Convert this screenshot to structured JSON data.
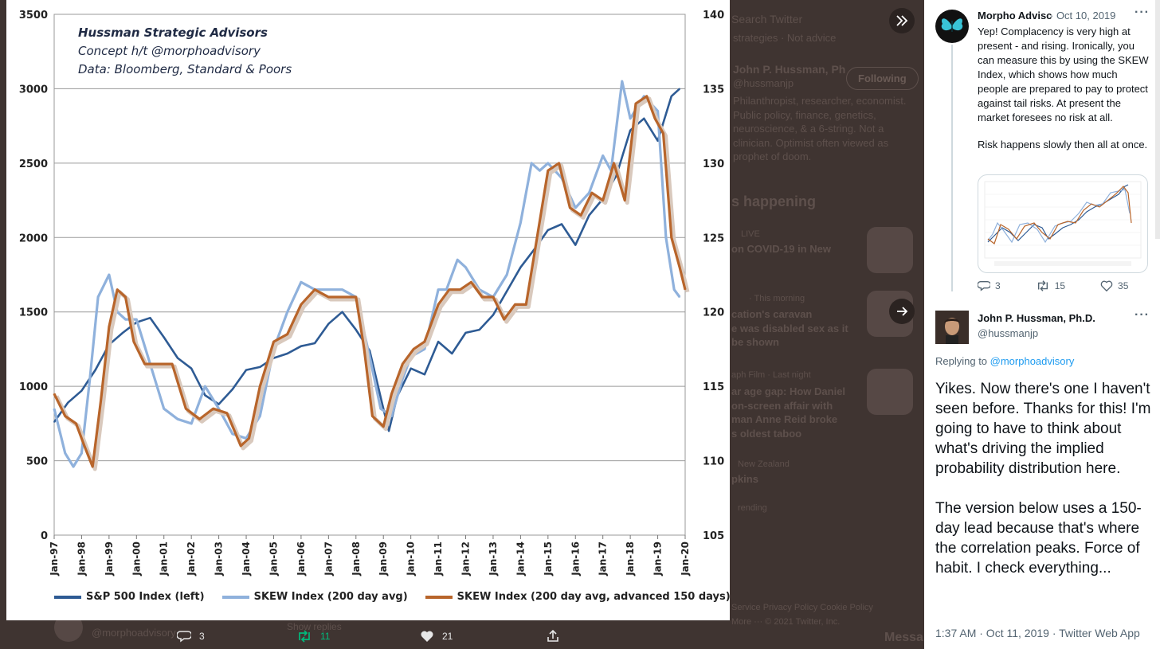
{
  "background": {
    "search_placeholder": "Search Twitter",
    "bio_cut": "strategies · Not advice",
    "profile_name": "John P. Hussman, Ph",
    "profile_handle": "@hussmanjp",
    "following_label": "Following",
    "bio_lines": [
      "Philanthropist, researcher, economist.",
      "Public policy, finance, genetics,",
      "neuroscience, & a 6-string. Not a",
      "clinician. Optimist often viewed as",
      "prophet of doom."
    ],
    "happening_header": "s happening",
    "trend1_meta": "LIVE",
    "trend1_title": "on COVID-19 in New",
    "trend2_meta": "· This morning",
    "trend2_lines": [
      "cation's caravan",
      "e was disabled sex as it",
      "be shown"
    ],
    "trend3_meta": "aph Film · Last night",
    "trend3_lines": [
      "ar age gap: How Daniel",
      "on-screen affair with",
      "man Anne Reid broke",
      "s oldest taboo"
    ],
    "trend4_meta": "New Zealand",
    "trend4_title": "pkins",
    "trend5_meta": "rending",
    "footer_links": "Service  Privacy Policy  Cookie Policy",
    "footer_more": "More ···  © 2021 Twitter, Inc.",
    "under_handle": "@morphoadvisory",
    "show_replies": "Show replies",
    "messages_cut": "Messa",
    "under_counts": {
      "replies": "3",
      "retweets": "11",
      "likes": "21"
    }
  },
  "chart_annotation": {
    "line1": "Hussman Strategic Advisors",
    "line2": "Concept h/t @morphoadvisory",
    "line3": "Data: Bloomberg, Standard & Poors"
  },
  "chart_data": {
    "type": "line",
    "x_ticks": [
      "Jan-97",
      "Jan-98",
      "Jan-99",
      "Jan-00",
      "Jan-01",
      "Jan-02",
      "Jan-03",
      "Jan-04",
      "Jan-05",
      "Jan-06",
      "Jan-07",
      "Jan-08",
      "Jan-09",
      "Jan-10",
      "Jan-11",
      "Jan-12",
      "Jan-13",
      "Jan-14",
      "Jan-15",
      "Jan-16",
      "Jan-17",
      "Jan-18",
      "Jan-19",
      "Jan-20"
    ],
    "y_left_ticks": [
      0,
      500,
      1000,
      1500,
      2000,
      2500,
      3000,
      3500
    ],
    "y_right_ticks": [
      105,
      110,
      115,
      120,
      125,
      130,
      135,
      140
    ],
    "ylim_left": [
      0,
      3500
    ],
    "ylim_right": [
      105,
      140
    ],
    "grid": true,
    "legend_position": "bottom",
    "series": [
      {
        "name": "S&P 500 Index (left)",
        "axis": "left",
        "color": "#2e5b94",
        "x": [
          1997.0,
          1997.5,
          1998.0,
          1998.5,
          1999.0,
          1999.5,
          2000.0,
          2000.5,
          2001.0,
          2001.5,
          2002.0,
          2002.5,
          2003.0,
          2003.5,
          2004.0,
          2004.5,
          2005.0,
          2005.5,
          2006.0,
          2006.5,
          2007.0,
          2007.5,
          2008.0,
          2008.5,
          2009.0,
          2009.2,
          2009.5,
          2010.0,
          2010.5,
          2011.0,
          2011.5,
          2012.0,
          2012.5,
          2013.0,
          2013.5,
          2014.0,
          2014.5,
          2015.0,
          2015.5,
          2016.0,
          2016.5,
          2017.0,
          2017.5,
          2018.0,
          2018.5,
          2019.0,
          2019.5,
          2019.8
        ],
        "y": [
          760,
          890,
          970,
          1110,
          1280,
          1360,
          1430,
          1460,
          1330,
          1190,
          1120,
          940,
          880,
          980,
          1110,
          1130,
          1190,
          1220,
          1270,
          1290,
          1420,
          1500,
          1380,
          1240,
          850,
          700,
          930,
          1120,
          1080,
          1300,
          1220,
          1360,
          1380,
          1480,
          1640,
          1800,
          1920,
          2050,
          2090,
          1950,
          2150,
          2260,
          2420,
          2720,
          2800,
          2650,
          2950,
          3000
        ]
      },
      {
        "name": "SKEW Index (200 day avg)",
        "axis": "right",
        "color": "#8fb1dc",
        "x": [
          1997.0,
          1997.4,
          1997.7,
          1998.0,
          1998.3,
          1998.6,
          1999.0,
          1999.3,
          1999.6,
          2000.0,
          2000.5,
          2001.0,
          2001.5,
          2002.0,
          2002.5,
          2003.0,
          2003.5,
          2004.0,
          2004.5,
          2005.0,
          2005.5,
          2006.0,
          2006.5,
          2007.0,
          2007.5,
          2008.0,
          2008.5,
          2008.9,
          2009.3,
          2009.7,
          2010.0,
          2010.5,
          2011.0,
          2011.3,
          2011.7,
          2012.0,
          2012.5,
          2013.0,
          2013.5,
          2014.0,
          2014.4,
          2014.7,
          2015.0,
          2015.5,
          2016.0,
          2016.5,
          2017.0,
          2017.3,
          2017.7,
          2018.0,
          2018.5,
          2019.0,
          2019.3,
          2019.6,
          2019.8
        ],
        "y": [
          113.5,
          110.5,
          109.6,
          110.5,
          115.5,
          121.0,
          122.5,
          120.0,
          119.5,
          119.5,
          116.5,
          113.5,
          112.8,
          112.5,
          115.0,
          113.5,
          111.8,
          111.5,
          113.0,
          117.5,
          120.0,
          122.0,
          121.5,
          121.5,
          121.5,
          121.0,
          117.0,
          113.5,
          113.0,
          115.5,
          117.0,
          117.5,
          121.5,
          121.5,
          123.5,
          123.0,
          121.5,
          121.0,
          122.5,
          126.0,
          130.0,
          129.5,
          130.0,
          129.0,
          127.0,
          128.0,
          130.5,
          129.5,
          135.5,
          133.0,
          134.5,
          133.5,
          125.0,
          121.5,
          121.0
        ]
      },
      {
        "name": "SKEW Index (200 day avg, advanced 150 days)",
        "axis": "right",
        "color": "#b8652b",
        "x": [
          1997.0,
          1997.4,
          1997.8,
          1998.1,
          1998.4,
          1998.7,
          1999.0,
          1999.3,
          1999.6,
          1999.9,
          2000.3,
          2000.8,
          2001.3,
          2001.8,
          2002.3,
          2002.8,
          2003.3,
          2003.8,
          2004.1,
          2004.5,
          2005.0,
          2005.5,
          2006.0,
          2006.5,
          2007.0,
          2007.5,
          2008.0,
          2008.3,
          2008.6,
          2009.0,
          2009.3,
          2009.7,
          2010.1,
          2010.5,
          2011.0,
          2011.4,
          2011.8,
          2012.2,
          2012.6,
          2013.0,
          2013.4,
          2013.8,
          2014.2,
          2014.6,
          2015.0,
          2015.4,
          2015.8,
          2016.2,
          2016.6,
          2017.0,
          2017.4,
          2017.8,
          2018.2,
          2018.6,
          2018.9,
          2019.2,
          2019.5,
          2019.8,
          2020.0
        ],
        "y": [
          114.5,
          113.0,
          112.5,
          111.0,
          109.6,
          114.0,
          119.0,
          121.5,
          121.0,
          118.0,
          116.5,
          116.5,
          116.5,
          113.5,
          112.8,
          113.5,
          113.2,
          111.0,
          111.5,
          115.0,
          118.0,
          118.5,
          120.5,
          121.5,
          121.0,
          121.0,
          121.0,
          117.5,
          113.0,
          112.3,
          114.5,
          116.5,
          117.5,
          118.0,
          120.5,
          121.5,
          121.5,
          122.0,
          121.0,
          121.0,
          119.5,
          120.5,
          120.5,
          125.0,
          129.5,
          130.0,
          127.0,
          126.5,
          128.0,
          127.5,
          130.0,
          127.5,
          134.0,
          134.5,
          133.0,
          132.0,
          125.0,
          123.0,
          121.5
        ]
      }
    ]
  },
  "tweet1": {
    "name": "Morpho Advisc",
    "date": "· Oct 10, 2019",
    "body": "Yep! Complacency is very high at present - and rising. Ironically, you can measure this by using the SKEW Index, which shows how much people are prepared to pay to protect against tail risks. At present the market foresees no risk at all.",
    "body2": "Risk happens slowly then all at once.",
    "replies": "3",
    "retweets": "15",
    "likes": "35"
  },
  "tweet2": {
    "name": "John P. Hussman, Ph.D.",
    "handle": "@hussmanjp",
    "replying_prefix": "Replying to ",
    "replying_to": "@morphoadvisory",
    "body": "Yikes. Now there's one I haven't seen before. Thanks for this! I'm going to have to think about what's driving the implied probability distribution here.",
    "body2": "The version below uses a 150-day lead because that's where the correlation peaks. Force of habit. I check everything...",
    "timestamp": "1:37 AM · Oct 11, 2019 · Twitter Web App"
  },
  "colors": {
    "accent": "#1d9bf0",
    "retweet": "#00ba7c",
    "dim_overlay": "#3f3431"
  }
}
